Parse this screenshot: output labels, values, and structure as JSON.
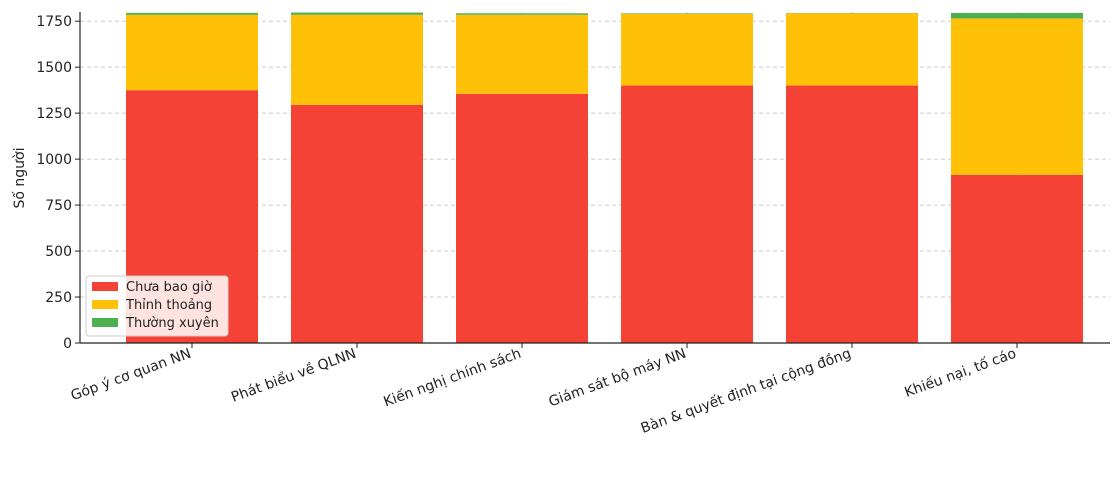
{
  "chart_data": {
    "type": "bar",
    "stacked": true,
    "title": "",
    "xlabel": "",
    "ylabel": "Số người",
    "ylim": [
      0,
      1800
    ],
    "yticks": [
      0,
      250,
      500,
      750,
      1000,
      1250,
      1500,
      1750
    ],
    "grid": true,
    "legend_position": "bottom-left",
    "categories": [
      "Góp ý cơ quan NN",
      "Phát biểu về QLNN",
      "Kiến nghị chính sách",
      "Giám sát bộ máy NN",
      "Bàn & quyết định tại cộng đồng",
      "Khiếu nại, tố cáo"
    ],
    "series": [
      {
        "name": "Chưa bao giờ",
        "color": "#f44336",
        "values": [
          1375,
          1295,
          1355,
          1400,
          1400,
          915
        ]
      },
      {
        "name": "Thỉnh thoảng",
        "color": "#ffc107",
        "values": [
          410,
          490,
          430,
          390,
          393,
          850
        ]
      },
      {
        "name": "Thường xuyên",
        "color": "#4caf50",
        "values": [
          10,
          12,
          8,
          3,
          2,
          30
        ]
      }
    ]
  }
}
